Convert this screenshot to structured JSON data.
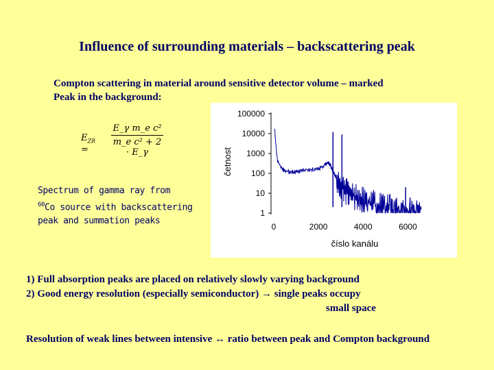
{
  "title": "Influence of surrounding materials – backscattering peak",
  "intro": {
    "line1": "Compton scattering in material around sensitive detector volume – marked",
    "line2": "Peak in the background:"
  },
  "formula": {
    "lhs": "E",
    "lhs_sub": "ZR",
    "eq": " =",
    "numerator": "E_γ m_e c²",
    "denominator": "m_e c² + 2 · E_γ"
  },
  "caption": {
    "line1": "Spectrum of gamma ray from",
    "isotope_mass": "60",
    "line2": "Co source with backscattering",
    "line3": "peak and summation peaks"
  },
  "points": {
    "p1": "1) Full absorption peaks are placed on relatively slowly varying background",
    "p2": "2) Good energy resolution (especially semiconductor)  → single peaks occupy",
    "p2b": "small space"
  },
  "conclusion": "Resolution of weak lines between  intensive ↔ ratio between peak and Compton background",
  "chart_data": {
    "type": "line",
    "xlabel": "číslo kanálu",
    "ylabel": "četnost",
    "x_ticks": [
      0,
      2000,
      4000,
      6000
    ],
    "y_ticks": [
      1,
      10,
      100,
      1000,
      10000,
      100000
    ],
    "y_tick_labels": [
      "1",
      "10",
      "100",
      "1000",
      "10000",
      "100000"
    ],
    "xlim": [
      0,
      7000
    ],
    "ylim": [
      1,
      100000
    ],
    "yscale": "log",
    "grid": false,
    "series": [
      {
        "color": "#000099",
        "x": [
          40,
          150,
          300,
          500,
          800,
          1000,
          1200,
          1500,
          1800,
          2000,
          2200,
          2400,
          2500,
          2600,
          2700,
          2800,
          2900,
          3000,
          3100,
          3200,
          3300,
          3400,
          3600,
          3800,
          4000,
          4200,
          4400,
          4600,
          4800,
          5000,
          5200,
          5400,
          5600,
          5800,
          6000,
          6200,
          6400,
          6600
        ],
        "y": [
          20000,
          600,
          250,
          150,
          130,
          140,
          150,
          170,
          180,
          200,
          260,
          380,
          350,
          200,
          110,
          70,
          60,
          40,
          35,
          30,
          25,
          20,
          15,
          12,
          10,
          8,
          7,
          6,
          5,
          4,
          4,
          3,
          3,
          3,
          2,
          2,
          2,
          1.5
        ]
      }
    ],
    "peaks": [
      {
        "x": 2650,
        "y": 12000
      },
      {
        "x": 3050,
        "y": 9000
      },
      {
        "x": 5300,
        "y": 5
      },
      {
        "x": 5900,
        "y": 20
      },
      {
        "x": 6100,
        "y": 6
      }
    ]
  }
}
